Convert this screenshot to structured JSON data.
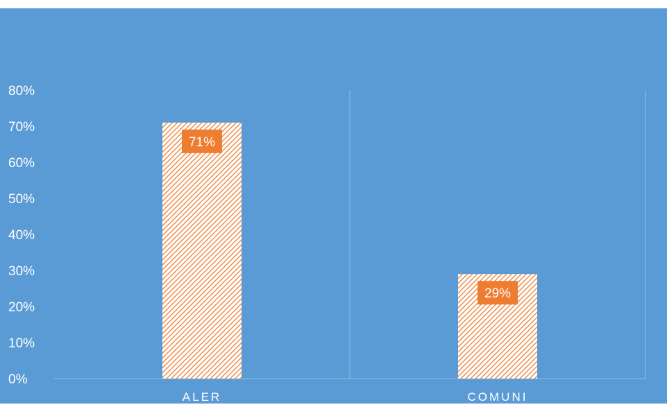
{
  "chart_data": {
    "type": "bar",
    "categories": [
      "ALER",
      "COMUNI"
    ],
    "values": [
      71,
      29
    ],
    "data_labels": [
      "71%",
      "29%"
    ],
    "y_ticks": [
      "0%",
      "10%",
      "20%",
      "30%",
      "40%",
      "50%",
      "60%",
      "70%",
      "80%"
    ],
    "ylim": [
      0,
      80
    ],
    "grid": "vertical category separators",
    "legend": "none",
    "title": "",
    "xlabel": "",
    "ylabel": ""
  },
  "colors": {
    "background": "#5b9bd5",
    "bar_fill": "#ffffff",
    "bar_hatch": "#ed7d31",
    "label_box": "#ed7d31",
    "text": "#ffffff",
    "grid": "#8fbce4"
  }
}
